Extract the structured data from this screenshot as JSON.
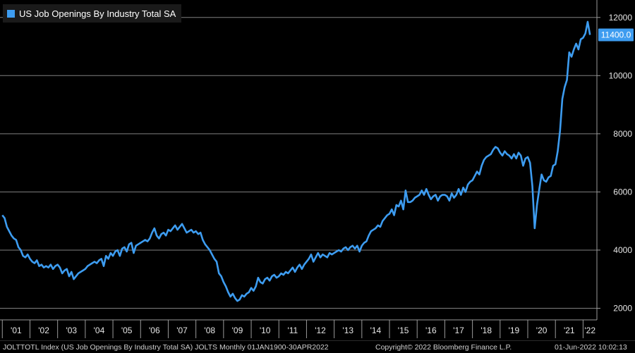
{
  "colors": {
    "series": "#3d9cf0",
    "background": "#000000",
    "grid": "#808080",
    "text": "#e6e6e6"
  },
  "legend": {
    "label": "US Job Openings By Industry Total SA"
  },
  "last_value_label": "11400.0",
  "footer": {
    "left": "JOLTTOTL Index (US Job Openings By Industry Total SA) JOLTS  Monthly 01JAN1900-30APR2022",
    "center": "Copyright© 2022 Bloomberg Finance L.P.",
    "right": "01-Jun-2022 10:02:13"
  },
  "chart_data": {
    "type": "line",
    "title": "",
    "xlabel": "",
    "ylabel": "",
    "ylim": [
      1600,
      12600
    ],
    "xlim": [
      "2000-12",
      "2022-07"
    ],
    "grid": true,
    "legend_position": "top-left",
    "y_axis_side": "right",
    "yticks": [
      2000,
      4000,
      6000,
      8000,
      10000,
      12000
    ],
    "ytick_labels": [
      "2000",
      "4000",
      "6000",
      "8000",
      "10000",
      "12000"
    ],
    "xtick_labels": [
      "'01",
      "'02",
      "'03",
      "'04",
      "'05",
      "'06",
      "'07",
      "'08",
      "'09",
      "'10",
      "'11",
      "'12",
      "'13",
      "'14",
      "'15",
      "'16",
      "'17",
      "'18",
      "'19",
      "'20",
      "'21",
      "'22"
    ],
    "series": [
      {
        "name": "US Job Openings By Industry Total SA",
        "last_value": 11400.0,
        "points": [
          [
            "2001-01",
            5200
          ],
          [
            "2001-02",
            5100
          ],
          [
            "2001-03",
            4800
          ],
          [
            "2001-04",
            4650
          ],
          [
            "2001-05",
            4500
          ],
          [
            "2001-06",
            4400
          ],
          [
            "2001-07",
            4350
          ],
          [
            "2001-08",
            4100
          ],
          [
            "2001-09",
            4000
          ],
          [
            "2001-10",
            3800
          ],
          [
            "2001-11",
            3750
          ],
          [
            "2001-12",
            3850
          ],
          [
            "2002-01",
            3700
          ],
          [
            "2002-02",
            3600
          ],
          [
            "2002-03",
            3550
          ],
          [
            "2002-04",
            3650
          ],
          [
            "2002-05",
            3450
          ],
          [
            "2002-06",
            3500
          ],
          [
            "2002-07",
            3400
          ],
          [
            "2002-08",
            3450
          ],
          [
            "2002-09",
            3400
          ],
          [
            "2002-10",
            3500
          ],
          [
            "2002-11",
            3350
          ],
          [
            "2002-12",
            3450
          ],
          [
            "2003-01",
            3500
          ],
          [
            "2003-02",
            3400
          ],
          [
            "2003-03",
            3200
          ],
          [
            "2003-04",
            3300
          ],
          [
            "2003-05",
            3350
          ],
          [
            "2003-06",
            3100
          ],
          [
            "2003-07",
            3250
          ],
          [
            "2003-08",
            3000
          ],
          [
            "2003-09",
            3100
          ],
          [
            "2003-10",
            3200
          ],
          [
            "2003-11",
            3250
          ],
          [
            "2003-12",
            3300
          ],
          [
            "2004-01",
            3350
          ],
          [
            "2004-02",
            3450
          ],
          [
            "2004-03",
            3500
          ],
          [
            "2004-04",
            3550
          ],
          [
            "2004-05",
            3600
          ],
          [
            "2004-06",
            3550
          ],
          [
            "2004-07",
            3650
          ],
          [
            "2004-08",
            3700
          ],
          [
            "2004-09",
            3450
          ],
          [
            "2004-10",
            3800
          ],
          [
            "2004-11",
            3700
          ],
          [
            "2004-12",
            3900
          ],
          [
            "2005-01",
            3800
          ],
          [
            "2005-02",
            3950
          ],
          [
            "2005-03",
            4000
          ],
          [
            "2005-04",
            3800
          ],
          [
            "2005-05",
            4050
          ],
          [
            "2005-06",
            4100
          ],
          [
            "2005-07",
            3950
          ],
          [
            "2005-08",
            4200
          ],
          [
            "2005-09",
            4250
          ],
          [
            "2005-10",
            3900
          ],
          [
            "2005-11",
            4150
          ],
          [
            "2005-12",
            4200
          ],
          [
            "2006-01",
            4250
          ],
          [
            "2006-02",
            4300
          ],
          [
            "2006-03",
            4350
          ],
          [
            "2006-04",
            4300
          ],
          [
            "2006-05",
            4400
          ],
          [
            "2006-06",
            4600
          ],
          [
            "2006-07",
            4750
          ],
          [
            "2006-08",
            4500
          ],
          [
            "2006-09",
            4400
          ],
          [
            "2006-10",
            4550
          ],
          [
            "2006-11",
            4600
          ],
          [
            "2006-12",
            4500
          ],
          [
            "2007-01",
            4700
          ],
          [
            "2007-02",
            4650
          ],
          [
            "2007-03",
            4750
          ],
          [
            "2007-04",
            4850
          ],
          [
            "2007-05",
            4700
          ],
          [
            "2007-06",
            4800
          ],
          [
            "2007-07",
            4900
          ],
          [
            "2007-08",
            4750
          ],
          [
            "2007-09",
            4600
          ],
          [
            "2007-10",
            4650
          ],
          [
            "2007-11",
            4700
          ],
          [
            "2007-12",
            4600
          ],
          [
            "2008-01",
            4650
          ],
          [
            "2008-02",
            4550
          ],
          [
            "2008-03",
            4600
          ],
          [
            "2008-04",
            4350
          ],
          [
            "2008-05",
            4200
          ],
          [
            "2008-06",
            4100
          ],
          [
            "2008-07",
            4000
          ],
          [
            "2008-08",
            3850
          ],
          [
            "2008-09",
            3700
          ],
          [
            "2008-10",
            3600
          ],
          [
            "2008-11",
            3200
          ],
          [
            "2008-12",
            3100
          ],
          [
            "2009-01",
            2900
          ],
          [
            "2009-02",
            2750
          ],
          [
            "2009-03",
            2550
          ],
          [
            "2009-04",
            2400
          ],
          [
            "2009-05",
            2500
          ],
          [
            "2009-06",
            2350
          ],
          [
            "2009-07",
            2250
          ],
          [
            "2009-08",
            2300
          ],
          [
            "2009-09",
            2450
          ],
          [
            "2009-10",
            2400
          ],
          [
            "2009-11",
            2500
          ],
          [
            "2009-12",
            2550
          ],
          [
            "2010-01",
            2700
          ],
          [
            "2010-02",
            2600
          ],
          [
            "2010-03",
            2750
          ],
          [
            "2010-04",
            3050
          ],
          [
            "2010-05",
            2900
          ],
          [
            "2010-06",
            2850
          ],
          [
            "2010-07",
            3000
          ],
          [
            "2010-08",
            3050
          ],
          [
            "2010-09",
            2950
          ],
          [
            "2010-10",
            3100
          ],
          [
            "2010-11",
            3150
          ],
          [
            "2010-12",
            3050
          ],
          [
            "2011-01",
            3100
          ],
          [
            "2011-02",
            3200
          ],
          [
            "2011-03",
            3150
          ],
          [
            "2011-04",
            3250
          ],
          [
            "2011-05",
            3200
          ],
          [
            "2011-06",
            3300
          ],
          [
            "2011-07",
            3400
          ],
          [
            "2011-08",
            3250
          ],
          [
            "2011-09",
            3400
          ],
          [
            "2011-10",
            3500
          ],
          [
            "2011-11",
            3350
          ],
          [
            "2011-12",
            3500
          ],
          [
            "2012-01",
            3600
          ],
          [
            "2012-02",
            3700
          ],
          [
            "2012-03",
            3850
          ],
          [
            "2012-04",
            3600
          ],
          [
            "2012-05",
            3750
          ],
          [
            "2012-06",
            3900
          ],
          [
            "2012-07",
            3750
          ],
          [
            "2012-08",
            3850
          ],
          [
            "2012-09",
            3800
          ],
          [
            "2012-10",
            3750
          ],
          [
            "2012-11",
            3900
          ],
          [
            "2012-12",
            3850
          ],
          [
            "2013-01",
            3900
          ],
          [
            "2013-02",
            3950
          ],
          [
            "2013-03",
            4000
          ],
          [
            "2013-04",
            3950
          ],
          [
            "2013-05",
            4050
          ],
          [
            "2013-06",
            4100
          ],
          [
            "2013-07",
            4000
          ],
          [
            "2013-08",
            4100
          ],
          [
            "2013-09",
            4150
          ],
          [
            "2013-10",
            4050
          ],
          [
            "2013-11",
            4150
          ],
          [
            "2013-12",
            3950
          ],
          [
            "2014-01",
            4150
          ],
          [
            "2014-02",
            4250
          ],
          [
            "2014-03",
            4300
          ],
          [
            "2014-04",
            4500
          ],
          [
            "2014-05",
            4650
          ],
          [
            "2014-06",
            4700
          ],
          [
            "2014-07",
            4750
          ],
          [
            "2014-08",
            4850
          ],
          [
            "2014-09",
            4800
          ],
          [
            "2014-10",
            5000
          ],
          [
            "2014-11",
            5100
          ],
          [
            "2014-12",
            5200
          ],
          [
            "2015-01",
            5250
          ],
          [
            "2015-02",
            5400
          ],
          [
            "2015-03",
            5200
          ],
          [
            "2015-04",
            5550
          ],
          [
            "2015-05",
            5500
          ],
          [
            "2015-06",
            5700
          ],
          [
            "2015-07",
            5400
          ],
          [
            "2015-08",
            6050
          ],
          [
            "2015-09",
            5650
          ],
          [
            "2015-10",
            5650
          ],
          [
            "2015-11",
            5700
          ],
          [
            "2015-12",
            5800
          ],
          [
            "2016-01",
            5850
          ],
          [
            "2016-02",
            5900
          ],
          [
            "2016-03",
            6050
          ],
          [
            "2016-04",
            5900
          ],
          [
            "2016-05",
            6100
          ],
          [
            "2016-06",
            5900
          ],
          [
            "2016-07",
            5750
          ],
          [
            "2016-08",
            5850
          ],
          [
            "2016-09",
            5900
          ],
          [
            "2016-10",
            5700
          ],
          [
            "2016-11",
            5850
          ],
          [
            "2016-12",
            5900
          ],
          [
            "2017-01",
            5900
          ],
          [
            "2017-02",
            5850
          ],
          [
            "2017-03",
            5700
          ],
          [
            "2017-04",
            5950
          ],
          [
            "2017-05",
            5800
          ],
          [
            "2017-06",
            5900
          ],
          [
            "2017-07",
            6100
          ],
          [
            "2017-08",
            5900
          ],
          [
            "2017-09",
            6150
          ],
          [
            "2017-10",
            6000
          ],
          [
            "2017-11",
            6250
          ],
          [
            "2017-12",
            6350
          ],
          [
            "2018-01",
            6400
          ],
          [
            "2018-02",
            6550
          ],
          [
            "2018-03",
            6700
          ],
          [
            "2018-04",
            6600
          ],
          [
            "2018-05",
            6900
          ],
          [
            "2018-06",
            7100
          ],
          [
            "2018-07",
            7200
          ],
          [
            "2018-08",
            7250
          ],
          [
            "2018-09",
            7300
          ],
          [
            "2018-10",
            7450
          ],
          [
            "2018-11",
            7550
          ],
          [
            "2018-12",
            7500
          ],
          [
            "2019-01",
            7350
          ],
          [
            "2019-02",
            7250
          ],
          [
            "2019-03",
            7400
          ],
          [
            "2019-04",
            7300
          ],
          [
            "2019-05",
            7250
          ],
          [
            "2019-06",
            7150
          ],
          [
            "2019-07",
            7300
          ],
          [
            "2019-08",
            7150
          ],
          [
            "2019-09",
            7350
          ],
          [
            "2019-10",
            7250
          ],
          [
            "2019-11",
            6900
          ],
          [
            "2019-12",
            7150
          ],
          [
            "2020-01",
            7200
          ],
          [
            "2020-02",
            7000
          ],
          [
            "2020-03",
            6200
          ],
          [
            "2020-04",
            4750
          ],
          [
            "2020-05",
            5550
          ],
          [
            "2020-06",
            6100
          ],
          [
            "2020-07",
            6600
          ],
          [
            "2020-08",
            6400
          ],
          [
            "2020-09",
            6350
          ],
          [
            "2020-10",
            6500
          ],
          [
            "2020-11",
            6550
          ],
          [
            "2020-12",
            6900
          ],
          [
            "2021-01",
            6950
          ],
          [
            "2021-02",
            7400
          ],
          [
            "2021-03",
            8100
          ],
          [
            "2021-04",
            9200
          ],
          [
            "2021-05",
            9600
          ],
          [
            "2021-06",
            9850
          ],
          [
            "2021-07",
            10800
          ],
          [
            "2021-08",
            10650
          ],
          [
            "2021-09",
            10900
          ],
          [
            "2021-10",
            11100
          ],
          [
            "2021-11",
            10900
          ],
          [
            "2021-12",
            11250
          ],
          [
            "2022-01",
            11300
          ],
          [
            "2022-02",
            11450
          ],
          [
            "2022-03",
            11850
          ],
          [
            "2022-04",
            11400
          ]
        ]
      }
    ]
  }
}
